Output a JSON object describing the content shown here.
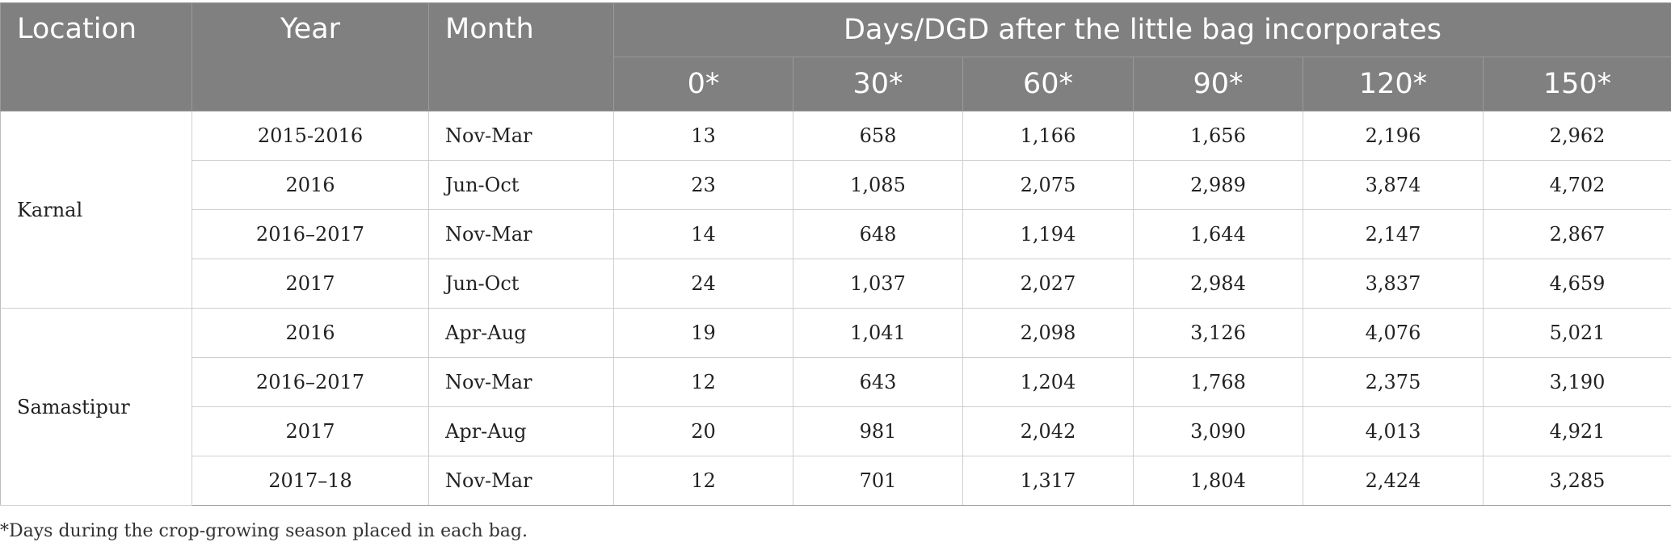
{
  "table": {
    "headers": {
      "location": "Location",
      "year": "Year",
      "month": "Month",
      "group": "Days/DGD after the little bag incorporates",
      "days": [
        "0*",
        "30*",
        "60*",
        "90*",
        "120*",
        "150*"
      ]
    },
    "groups": [
      {
        "location": "Karnal",
        "rows": [
          {
            "year": "2015-2016",
            "month": "Nov-Mar",
            "values": [
              "13",
              "658",
              "1,166",
              "1,656",
              "2,196",
              "2,962"
            ]
          },
          {
            "year": "2016",
            "month": "Jun-Oct",
            "values": [
              "23",
              "1,085",
              "2,075",
              "2,989",
              "3,874",
              "4,702"
            ]
          },
          {
            "year": "2016–2017",
            "month": "Nov-Mar",
            "values": [
              "14",
              "648",
              "1,194",
              "1,644",
              "2,147",
              "2,867"
            ]
          },
          {
            "year": "2017",
            "month": "Jun-Oct",
            "values": [
              "24",
              "1,037",
              "2,027",
              "2,984",
              "3,837",
              "4,659"
            ]
          }
        ]
      },
      {
        "location": "Samastipur",
        "rows": [
          {
            "year": "2016",
            "month": "Apr-Aug",
            "values": [
              "19",
              "1,041",
              "2,098",
              "3,126",
              "4,076",
              "5,021"
            ]
          },
          {
            "year": "2016–2017",
            "month": "Nov-Mar",
            "values": [
              "12",
              "643",
              "1,204",
              "1,768",
              "2,375",
              "3,190"
            ]
          },
          {
            "year": "2017",
            "month": "Apr-Aug",
            "values": [
              "20",
              "981",
              "2,042",
              "3,090",
              "4,013",
              "4,921"
            ]
          },
          {
            "year": "2017–18",
            "month": "Nov-Mar",
            "values": [
              "12",
              "701",
              "1,317",
              "1,804",
              "2,424",
              "3,285"
            ]
          }
        ]
      }
    ],
    "footnote": "*Days during the crop-growing season placed in each bag.",
    "header_bg": "#808080",
    "header_text": "#ffffff"
  }
}
